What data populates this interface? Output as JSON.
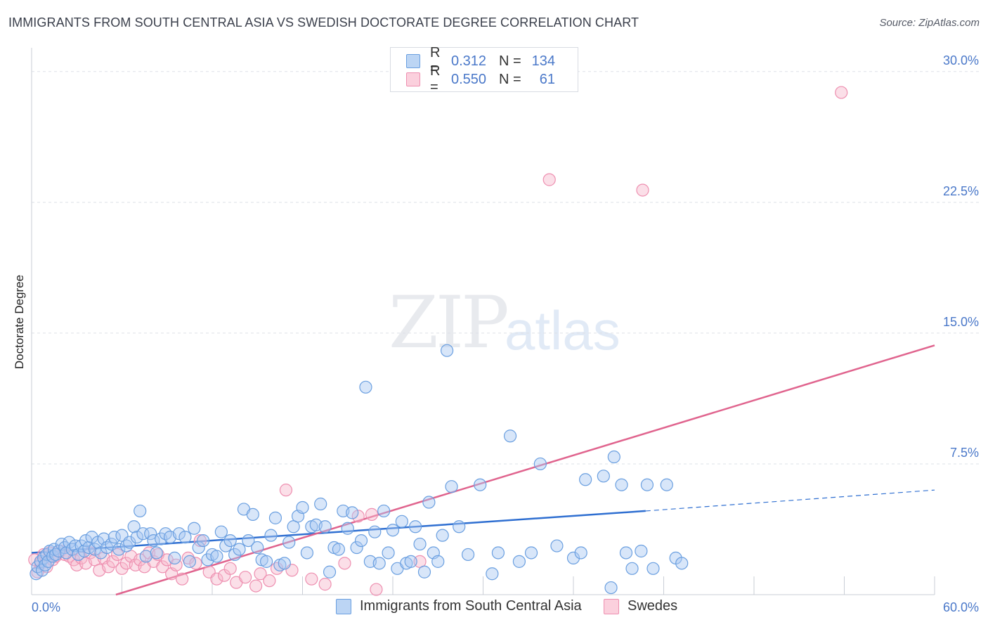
{
  "header": {
    "title": "IMMIGRANTS FROM SOUTH CENTRAL ASIA VS SWEDISH DOCTORATE DEGREE CORRELATION CHART",
    "source": "Source: ZipAtlas.com"
  },
  "watermark": {
    "zip": "ZIP",
    "atlas": "atlas"
  },
  "legend_top": {
    "rows": [
      {
        "r_label": "R =",
        "r_value": "0.312",
        "n_label": "N =",
        "n_value": "134",
        "color": "#a9c8f1"
      },
      {
        "r_label": "R =",
        "r_value": "0.550",
        "n_label": "N =",
        "n_value": "61",
        "color": "#f6b9cc"
      }
    ]
  },
  "legend_bottom": {
    "items": [
      {
        "label": "Immigrants from South Central Asia",
        "color": "#a9c8f1"
      },
      {
        "label": "Swedes",
        "color": "#f6b9cc"
      }
    ]
  },
  "chart_data": {
    "type": "scatter",
    "title": "IMMIGRANTS FROM SOUTH CENTRAL ASIA VS SWEDISH DOCTORATE DEGREE CORRELATION CHART",
    "xlabel": "",
    "ylabel": "Doctorate Degree",
    "xlim": [
      0,
      60
    ],
    "ylim": [
      0,
      31
    ],
    "x_tick_labels": [
      {
        "value": 0,
        "label": "0.0%"
      },
      {
        "value": 60,
        "label": "60.0%"
      }
    ],
    "y_tick_labels": [
      {
        "value": 7.5,
        "label": "7.5%"
      },
      {
        "value": 15,
        "label": "15.0%"
      },
      {
        "value": 22.5,
        "label": "22.5%"
      },
      {
        "value": 30,
        "label": "30.0%"
      }
    ],
    "colors": {
      "blue": "#6a9fe0",
      "blue_line": "#2f6fd1",
      "pink": "#ee8fb0",
      "pink_line": "#e0648e"
    },
    "series": [
      {
        "name": "Immigrants from South Central Asia",
        "trend": {
          "x0": 0,
          "y0": 2.4,
          "x1": 40.8,
          "y1": 4.8,
          "dash_to_x": 60,
          "dash_to_y": 6.0
        },
        "points": [
          [
            0.3,
            1.2
          ],
          [
            0.4,
            1.6
          ],
          [
            0.6,
            1.9
          ],
          [
            0.7,
            1.4
          ],
          [
            0.8,
            2.1
          ],
          [
            0.9,
            1.7
          ],
          [
            1.0,
            2.3
          ],
          [
            1.1,
            1.9
          ],
          [
            1.2,
            2.5
          ],
          [
            1.4,
            2.2
          ],
          [
            1.5,
            2.6
          ],
          [
            1.6,
            2.3
          ],
          [
            1.8,
            2.5
          ],
          [
            2.0,
            2.9
          ],
          [
            2.2,
            2.7
          ],
          [
            2.3,
            2.4
          ],
          [
            2.5,
            3.0
          ],
          [
            2.7,
            2.6
          ],
          [
            2.9,
            2.8
          ],
          [
            3.1,
            2.3
          ],
          [
            3.3,
            2.8
          ],
          [
            3.5,
            2.5
          ],
          [
            3.6,
            3.1
          ],
          [
            3.8,
            2.7
          ],
          [
            4.0,
            3.3
          ],
          [
            4.2,
            2.6
          ],
          [
            4.4,
            3.0
          ],
          [
            4.6,
            2.4
          ],
          [
            4.8,
            3.2
          ],
          [
            5.0,
            2.7
          ],
          [
            5.3,
            2.9
          ],
          [
            5.5,
            3.3
          ],
          [
            5.8,
            2.6
          ],
          [
            6.0,
            3.4
          ],
          [
            6.3,
            2.8
          ],
          [
            6.5,
            3.0
          ],
          [
            6.8,
            3.9
          ],
          [
            7.0,
            3.3
          ],
          [
            7.2,
            4.8
          ],
          [
            7.4,
            3.5
          ],
          [
            7.6,
            2.2
          ],
          [
            7.9,
            3.5
          ],
          [
            8.1,
            3.1
          ],
          [
            8.3,
            2.4
          ],
          [
            8.6,
            3.2
          ],
          [
            8.9,
            3.5
          ],
          [
            9.2,
            3.3
          ],
          [
            9.5,
            2.1
          ],
          [
            9.8,
            3.5
          ],
          [
            10.2,
            3.3
          ],
          [
            10.5,
            1.9
          ],
          [
            10.8,
            3.8
          ],
          [
            11.1,
            2.7
          ],
          [
            11.4,
            3.1
          ],
          [
            11.7,
            2.0
          ],
          [
            12.0,
            2.3
          ],
          [
            12.3,
            2.2
          ],
          [
            12.6,
            3.6
          ],
          [
            12.9,
            2.8
          ],
          [
            13.2,
            3.1
          ],
          [
            13.5,
            2.3
          ],
          [
            13.8,
            2.6
          ],
          [
            14.1,
            4.9
          ],
          [
            14.4,
            3.1
          ],
          [
            14.7,
            4.6
          ],
          [
            15.0,
            2.7
          ],
          [
            15.3,
            2.0
          ],
          [
            15.6,
            1.9
          ],
          [
            15.9,
            3.4
          ],
          [
            16.2,
            4.4
          ],
          [
            16.5,
            1.7
          ],
          [
            16.8,
            1.8
          ],
          [
            17.1,
            3.0
          ],
          [
            17.4,
            3.9
          ],
          [
            17.7,
            4.5
          ],
          [
            18.0,
            5.0
          ],
          [
            18.3,
            2.4
          ],
          [
            18.6,
            3.9
          ],
          [
            18.9,
            4.0
          ],
          [
            19.2,
            5.2
          ],
          [
            19.5,
            3.9
          ],
          [
            19.8,
            1.3
          ],
          [
            20.1,
            2.7
          ],
          [
            20.4,
            2.6
          ],
          [
            20.7,
            4.8
          ],
          [
            21.0,
            3.8
          ],
          [
            21.3,
            4.7
          ],
          [
            21.6,
            2.7
          ],
          [
            21.9,
            3.1
          ],
          [
            22.2,
            11.9
          ],
          [
            22.5,
            1.9
          ],
          [
            22.8,
            3.6
          ],
          [
            23.1,
            1.8
          ],
          [
            23.4,
            4.8
          ],
          [
            23.7,
            2.4
          ],
          [
            24.0,
            3.7
          ],
          [
            24.3,
            1.5
          ],
          [
            24.6,
            4.2
          ],
          [
            24.9,
            1.8
          ],
          [
            25.2,
            1.9
          ],
          [
            25.5,
            3.9
          ],
          [
            25.8,
            2.9
          ],
          [
            26.1,
            1.3
          ],
          [
            26.4,
            5.3
          ],
          [
            26.7,
            2.4
          ],
          [
            27.0,
            1.9
          ],
          [
            27.3,
            3.4
          ],
          [
            27.6,
            14.0
          ],
          [
            27.9,
            6.2
          ],
          [
            28.4,
            3.9
          ],
          [
            29.0,
            2.3
          ],
          [
            29.8,
            6.3
          ],
          [
            30.6,
            1.2
          ],
          [
            31.0,
            2.4
          ],
          [
            31.8,
            9.1
          ],
          [
            32.4,
            1.9
          ],
          [
            33.2,
            2.4
          ],
          [
            33.8,
            7.5
          ],
          [
            34.9,
            2.8
          ],
          [
            36.0,
            2.1
          ],
          [
            36.5,
            2.4
          ],
          [
            36.8,
            6.6
          ],
          [
            38.0,
            6.8
          ],
          [
            38.5,
            0.4
          ],
          [
            38.7,
            7.9
          ],
          [
            39.2,
            6.3
          ],
          [
            39.5,
            2.4
          ],
          [
            39.9,
            1.5
          ],
          [
            40.5,
            2.5
          ],
          [
            40.9,
            6.3
          ],
          [
            41.3,
            1.5
          ],
          [
            42.2,
            6.3
          ],
          [
            42.8,
            2.1
          ],
          [
            43.2,
            1.8
          ]
        ]
      },
      {
        "name": "Swedes",
        "trend": {
          "x0": 5.6,
          "y0": 0,
          "x1": 60,
          "y1": 14.3
        },
        "points": [
          [
            0.2,
            2.0
          ],
          [
            0.4,
            1.3
          ],
          [
            0.6,
            1.8
          ],
          [
            0.8,
            2.3
          ],
          [
            1.0,
            1.6
          ],
          [
            1.2,
            2.4
          ],
          [
            1.4,
            2.0
          ],
          [
            1.6,
            2.2
          ],
          [
            1.9,
            2.5
          ],
          [
            2.2,
            2.3
          ],
          [
            2.5,
            2.2
          ],
          [
            2.8,
            2.0
          ],
          [
            3.0,
            1.7
          ],
          [
            3.3,
            2.1
          ],
          [
            3.6,
            1.8
          ],
          [
            3.9,
            2.4
          ],
          [
            4.2,
            2.0
          ],
          [
            4.5,
            1.4
          ],
          [
            4.8,
            2.1
          ],
          [
            5.1,
            1.6
          ],
          [
            5.4,
            1.9
          ],
          [
            5.7,
            2.3
          ],
          [
            6.0,
            1.5
          ],
          [
            6.3,
            1.8
          ],
          [
            6.6,
            2.2
          ],
          [
            6.9,
            1.7
          ],
          [
            7.2,
            2.0
          ],
          [
            7.5,
            1.6
          ],
          [
            7.8,
            2.4
          ],
          [
            8.1,
            1.9
          ],
          [
            8.4,
            2.3
          ],
          [
            8.7,
            1.6
          ],
          [
            9.0,
            2.0
          ],
          [
            9.3,
            1.2
          ],
          [
            9.6,
            1.7
          ],
          [
            10.0,
            0.9
          ],
          [
            10.4,
            2.1
          ],
          [
            10.9,
            1.8
          ],
          [
            11.2,
            3.1
          ],
          [
            11.8,
            1.3
          ],
          [
            12.3,
            0.9
          ],
          [
            12.8,
            1.1
          ],
          [
            13.2,
            1.5
          ],
          [
            13.6,
            0.7
          ],
          [
            14.2,
            1.0
          ],
          [
            14.9,
            0.5
          ],
          [
            15.2,
            1.2
          ],
          [
            15.8,
            0.8
          ],
          [
            16.3,
            1.5
          ],
          [
            16.9,
            6.0
          ],
          [
            17.3,
            1.4
          ],
          [
            18.6,
            0.9
          ],
          [
            19.5,
            0.6
          ],
          [
            20.8,
            1.8
          ],
          [
            21.7,
            4.5
          ],
          [
            22.6,
            4.6
          ],
          [
            22.9,
            0.3
          ],
          [
            25.8,
            1.9
          ],
          [
            34.4,
            23.8
          ],
          [
            40.6,
            23.2
          ],
          [
            53.8,
            28.8
          ]
        ]
      }
    ]
  }
}
